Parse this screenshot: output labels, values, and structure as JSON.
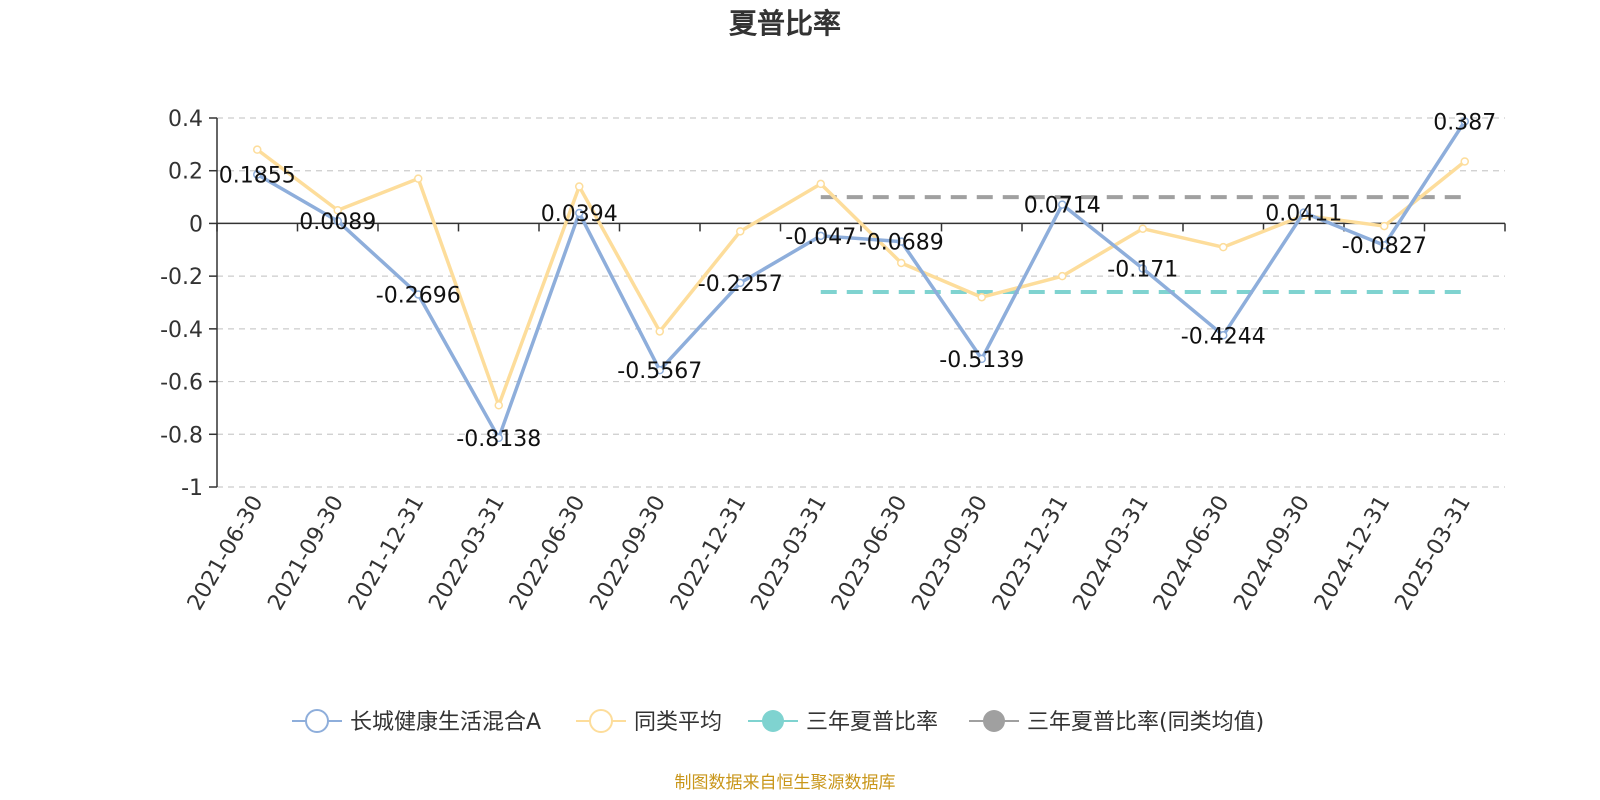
{
  "chart_data": {
    "type": "line",
    "title": "夏普比率",
    "categories": [
      "2021-06-30",
      "2021-09-30",
      "2021-12-31",
      "2022-03-31",
      "2022-06-30",
      "2022-09-30",
      "2022-12-31",
      "2023-03-31",
      "2023-06-30",
      "2023-09-30",
      "2023-12-31",
      "2024-03-31",
      "2024-06-30",
      "2024-09-30",
      "2024-12-31",
      "2025-03-31"
    ],
    "ylim": [
      -1,
      0.4
    ],
    "yticks": [
      0.4,
      0.2,
      0,
      -0.2,
      -0.4,
      -0.6,
      -0.8,
      -1
    ],
    "ytick_labels": [
      "0.4",
      "0.2",
      "0",
      "-0.2",
      "-0.4",
      "-0.6",
      "-0.8",
      "-1"
    ],
    "grid": true,
    "legend_position": "bottom",
    "series": [
      {
        "name": "长城健康生活混合A",
        "color": "#8eaedb",
        "values": [
          0.1855,
          0.0089,
          -0.2696,
          -0.8138,
          0.0394,
          -0.5567,
          -0.2257,
          -0.047,
          -0.0689,
          -0.5139,
          0.0714,
          -0.171,
          -0.4244,
          0.0411,
          -0.0827,
          0.387
        ],
        "labels": [
          "0.1855",
          "0.0089",
          "-0.2696",
          "-0.8138",
          "0.0394",
          "-0.5567",
          "-0.2257",
          "-0.047",
          "-0.0689",
          "-0.5139",
          "0.0714",
          "-0.171",
          "-0.4244",
          "0.0411",
          "-0.0827",
          "0.387"
        ]
      },
      {
        "name": "同类平均",
        "color": "#fddd9b",
        "values": [
          0.28,
          0.05,
          0.17,
          -0.69,
          0.14,
          -0.41,
          -0.03,
          0.15,
          -0.15,
          -0.28,
          -0.2,
          -0.02,
          -0.09,
          0.03,
          -0.01,
          0.235
        ]
      },
      {
        "name": "三年夏普比率",
        "color": "#7fd3d0",
        "style": "dashed",
        "value": -0.26,
        "from": "2023-03-31",
        "to": "2025-03-31"
      },
      {
        "name": "三年夏普比率(同类均值)",
        "color": "#a0a0a0",
        "style": "dashed",
        "value": 0.1,
        "from": "2023-03-31",
        "to": "2025-03-31"
      }
    ],
    "source": "制图数据来自恒生聚源数据库"
  }
}
